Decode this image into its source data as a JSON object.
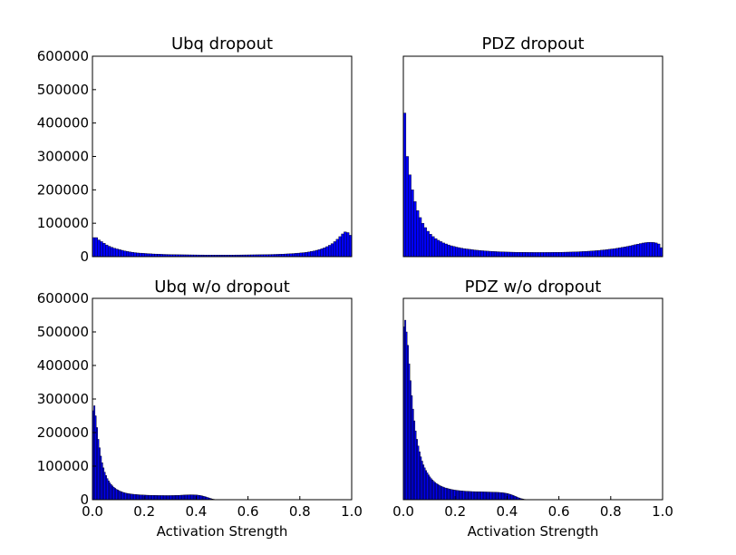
{
  "chart_data": [
    {
      "type": "bar",
      "title": "Ubq dropout",
      "xlabel": "",
      "ylabel": "",
      "xlim": [
        0,
        1
      ],
      "ylim": [
        0,
        600000
      ],
      "xticks": [],
      "yticks": [
        "0",
        "100000",
        "200000",
        "300000",
        "400000",
        "500000",
        "600000"
      ],
      "bar_color": "#0000ff",
      "edge_color": "#000000",
      "bin_width": 0.01,
      "x": [
        0.005,
        0.015,
        0.025,
        0.035,
        0.045,
        0.055,
        0.065,
        0.075,
        0.085,
        0.095,
        0.105,
        0.115,
        0.125,
        0.135,
        0.145,
        0.155,
        0.165,
        0.175,
        0.185,
        0.195,
        0.205,
        0.215,
        0.225,
        0.235,
        0.245,
        0.255,
        0.265,
        0.275,
        0.285,
        0.295,
        0.305,
        0.315,
        0.325,
        0.335,
        0.345,
        0.355,
        0.365,
        0.375,
        0.385,
        0.395,
        0.405,
        0.415,
        0.425,
        0.435,
        0.445,
        0.455,
        0.465,
        0.475,
        0.485,
        0.495,
        0.505,
        0.515,
        0.525,
        0.535,
        0.545,
        0.555,
        0.565,
        0.575,
        0.585,
        0.595,
        0.605,
        0.615,
        0.625,
        0.635,
        0.645,
        0.655,
        0.665,
        0.675,
        0.685,
        0.695,
        0.705,
        0.715,
        0.725,
        0.735,
        0.745,
        0.755,
        0.765,
        0.775,
        0.785,
        0.795,
        0.805,
        0.815,
        0.825,
        0.835,
        0.845,
        0.855,
        0.865,
        0.875,
        0.885,
        0.895,
        0.905,
        0.915,
        0.925,
        0.935,
        0.945,
        0.955,
        0.965,
        0.975,
        0.985,
        0.995
      ],
      "values": [
        57000,
        57000,
        50000,
        45000,
        40000,
        35000,
        31000,
        28000,
        25000,
        23000,
        21000,
        19000,
        17000,
        15500,
        14000,
        13000,
        12000,
        11000,
        10500,
        10000,
        9500,
        9000,
        8500,
        8000,
        7700,
        7400,
        7100,
        6800,
        6600,
        6400,
        6200,
        6000,
        5900,
        5800,
        5700,
        5600,
        5500,
        5400,
        5300,
        5200,
        5100,
        5000,
        5000,
        4900,
        4900,
        4800,
        4800,
        4800,
        4800,
        4800,
        4800,
        4800,
        4800,
        4900,
        4900,
        5000,
        5000,
        5100,
        5200,
        5300,
        5400,
        5500,
        5600,
        5700,
        5800,
        5900,
        6000,
        6200,
        6400,
        6600,
        6800,
        7000,
        7300,
        7600,
        8000,
        8400,
        8800,
        9300,
        9900,
        10500,
        11200,
        12000,
        13000,
        14000,
        15500,
        17000,
        19000,
        21000,
        23500,
        26500,
        30000,
        34000,
        39000,
        45000,
        52000,
        60000,
        68000,
        74000,
        72000,
        64000
      ]
    },
    {
      "type": "bar",
      "title": "PDZ dropout",
      "xlabel": "",
      "ylabel": "",
      "xlim": [
        0,
        1
      ],
      "ylim": [
        0,
        600000
      ],
      "xticks": [],
      "yticks": [],
      "bar_color": "#0000ff",
      "edge_color": "#000000",
      "bin_width": 0.01,
      "x": [
        0.005,
        0.015,
        0.025,
        0.035,
        0.045,
        0.055,
        0.065,
        0.075,
        0.085,
        0.095,
        0.105,
        0.115,
        0.125,
        0.135,
        0.145,
        0.155,
        0.165,
        0.175,
        0.185,
        0.195,
        0.205,
        0.215,
        0.225,
        0.235,
        0.245,
        0.255,
        0.265,
        0.275,
        0.285,
        0.295,
        0.305,
        0.315,
        0.325,
        0.335,
        0.345,
        0.355,
        0.365,
        0.375,
        0.385,
        0.395,
        0.405,
        0.415,
        0.425,
        0.435,
        0.445,
        0.455,
        0.465,
        0.475,
        0.485,
        0.495,
        0.505,
        0.515,
        0.525,
        0.535,
        0.545,
        0.555,
        0.565,
        0.575,
        0.585,
        0.595,
        0.605,
        0.615,
        0.625,
        0.635,
        0.645,
        0.655,
        0.665,
        0.675,
        0.685,
        0.695,
        0.705,
        0.715,
        0.725,
        0.735,
        0.745,
        0.755,
        0.765,
        0.775,
        0.785,
        0.795,
        0.805,
        0.815,
        0.825,
        0.835,
        0.845,
        0.855,
        0.865,
        0.875,
        0.885,
        0.895,
        0.905,
        0.915,
        0.925,
        0.935,
        0.945,
        0.955,
        0.965,
        0.975,
        0.985,
        0.995
      ],
      "values": [
        430000,
        300000,
        245000,
        200000,
        165000,
        138000,
        117000,
        100000,
        87000,
        76000,
        67000,
        60000,
        54000,
        49000,
        45000,
        41000,
        38000,
        35000,
        32500,
        30500,
        28500,
        27000,
        25500,
        24000,
        23000,
        22000,
        21000,
        20000,
        19200,
        18500,
        17800,
        17200,
        16600,
        16100,
        15600,
        15200,
        14800,
        14500,
        14200,
        13900,
        13700,
        13500,
        13300,
        13100,
        13000,
        12900,
        12800,
        12700,
        12600,
        12600,
        12500,
        12500,
        12500,
        12500,
        12500,
        12600,
        12600,
        12700,
        12800,
        12900,
        13000,
        13200,
        13400,
        13600,
        13800,
        14000,
        14300,
        14600,
        15000,
        15400,
        15800,
        16300,
        16800,
        17400,
        18000,
        18700,
        19400,
        20200,
        21000,
        22000,
        23000,
        24000,
        25200,
        26500,
        27800,
        29200,
        30700,
        32300,
        34000,
        35800,
        37500,
        39200,
        40800,
        42000,
        42800,
        43000,
        42500,
        41000,
        38000,
        27000
      ]
    },
    {
      "type": "bar",
      "title": "Ubq w/o dropout",
      "xlabel": "Activation Strength",
      "ylabel": "",
      "xlim": [
        0,
        1
      ],
      "ylim": [
        0,
        600000
      ],
      "xticks": [
        "0.0",
        "0.2",
        "0.4",
        "0.6",
        "0.8",
        "1.0"
      ],
      "yticks": [
        "0",
        "100000",
        "200000",
        "300000",
        "400000",
        "500000",
        "600000"
      ],
      "bar_color": "#0000ff",
      "edge_color": "#000000",
      "bin_width": 0.005,
      "x": [
        0.0025,
        0.0075,
        0.0125,
        0.0175,
        0.0225,
        0.0275,
        0.0325,
        0.0375,
        0.0425,
        0.0475,
        0.0525,
        0.0575,
        0.0625,
        0.0675,
        0.0725,
        0.0775,
        0.0825,
        0.0875,
        0.0925,
        0.0975,
        0.1025,
        0.1075,
        0.1125,
        0.1175,
        0.1225,
        0.1275,
        0.1325,
        0.1375,
        0.1425,
        0.1475,
        0.1525,
        0.1575,
        0.1625,
        0.1675,
        0.1725,
        0.1775,
        0.1825,
        0.1875,
        0.1925,
        0.1975,
        0.2025,
        0.2075,
        0.2125,
        0.2175,
        0.2225,
        0.2275,
        0.2325,
        0.2375,
        0.2425,
        0.2475,
        0.2525,
        0.2575,
        0.2625,
        0.2675,
        0.2725,
        0.2775,
        0.2825,
        0.2875,
        0.2925,
        0.2975,
        0.3025,
        0.3075,
        0.3125,
        0.3175,
        0.3225,
        0.3275,
        0.3325,
        0.3375,
        0.3425,
        0.3475,
        0.3525,
        0.3575,
        0.3625,
        0.3675,
        0.3725,
        0.3775,
        0.3825,
        0.3875,
        0.3925,
        0.3975,
        0.4025,
        0.4075,
        0.4125,
        0.4175,
        0.4225,
        0.4275,
        0.4325,
        0.4375,
        0.4425,
        0.4475,
        0.4525,
        0.4575,
        0.4625,
        0.4675,
        0.4725,
        0.4775,
        0.4825,
        0.4875,
        0.4925,
        0.4975
      ],
      "values": [
        265000,
        280000,
        250000,
        215000,
        180000,
        155000,
        130000,
        110000,
        95000,
        82000,
        72000,
        63000,
        56000,
        50000,
        45000,
        41000,
        37000,
        34000,
        31000,
        29000,
        27000,
        25000,
        23500,
        22000,
        21000,
        20000,
        19000,
        18300,
        17700,
        17100,
        16600,
        16200,
        15800,
        15400,
        15100,
        14800,
        14500,
        14300,
        14100,
        13900,
        13700,
        13500,
        13300,
        13200,
        13100,
        13000,
        12900,
        12800,
        12700,
        12600,
        12500,
        12500,
        12400,
        12400,
        12400,
        12300,
        12300,
        12300,
        12300,
        12300,
        12400,
        12400,
        12500,
        12600,
        12700,
        12800,
        13000,
        13200,
        13400,
        13600,
        13800,
        14000,
        14200,
        14400,
        14500,
        14600,
        14600,
        14500,
        14400,
        14200,
        13900,
        13500,
        13000,
        12300,
        11500,
        10500,
        9500,
        8300,
        7000,
        5700,
        4400,
        3200,
        2200,
        1400,
        800,
        400,
        200,
        100,
        50,
        20
      ]
    },
    {
      "type": "bar",
      "title": "PDZ w/o dropout",
      "xlabel": "Activation Strength",
      "ylabel": "",
      "xlim": [
        0,
        1
      ],
      "ylim": [
        0,
        600000
      ],
      "xticks": [
        "0.0",
        "0.2",
        "0.4",
        "0.6",
        "0.8",
        "1.0"
      ],
      "yticks": [],
      "bar_color": "#0000ff",
      "edge_color": "#000000",
      "bin_width": 0.005,
      "x": [
        0.0025,
        0.0075,
        0.0125,
        0.0175,
        0.0225,
        0.0275,
        0.0325,
        0.0375,
        0.0425,
        0.0475,
        0.0525,
        0.0575,
        0.0625,
        0.0675,
        0.0725,
        0.0775,
        0.0825,
        0.0875,
        0.0925,
        0.0975,
        0.1025,
        0.1075,
        0.1125,
        0.1175,
        0.1225,
        0.1275,
        0.1325,
        0.1375,
        0.1425,
        0.1475,
        0.1525,
        0.1575,
        0.1625,
        0.1675,
        0.1725,
        0.1775,
        0.1825,
        0.1875,
        0.1925,
        0.1975,
        0.2025,
        0.2075,
        0.2125,
        0.2175,
        0.2225,
        0.2275,
        0.2325,
        0.2375,
        0.2425,
        0.2475,
        0.2525,
        0.2575,
        0.2625,
        0.2675,
        0.2725,
        0.2775,
        0.2825,
        0.2875,
        0.2925,
        0.2975,
        0.3025,
        0.3075,
        0.3125,
        0.3175,
        0.3225,
        0.3275,
        0.3325,
        0.3375,
        0.3425,
        0.3475,
        0.3525,
        0.3575,
        0.3625,
        0.3675,
        0.3725,
        0.3775,
        0.3825,
        0.3875,
        0.3925,
        0.3975,
        0.4025,
        0.4075,
        0.4125,
        0.4175,
        0.4225,
        0.4275,
        0.4325,
        0.4375,
        0.4425,
        0.4475,
        0.4525,
        0.4575,
        0.4625,
        0.4675,
        0.4725,
        0.4775,
        0.4825,
        0.4875,
        0.4925,
        0.4975
      ],
      "values": [
        515000,
        535000,
        500000,
        460000,
        405000,
        355000,
        310000,
        270000,
        235000,
        205000,
        180000,
        160000,
        143000,
        128000,
        115000,
        104000,
        95000,
        87000,
        80000,
        74000,
        68000,
        63000,
        59000,
        55000,
        51500,
        48500,
        46000,
        43500,
        41500,
        39500,
        38000,
        36500,
        35000,
        34000,
        33000,
        32000,
        31000,
        30200,
        29500,
        28800,
        28200,
        27700,
        27200,
        26800,
        26400,
        26000,
        25700,
        25400,
        25100,
        24900,
        24700,
        24500,
        24300,
        24100,
        24000,
        23900,
        23800,
        23700,
        23600,
        23500,
        23400,
        23300,
        23200,
        23100,
        23000,
        22900,
        22800,
        22700,
        22600,
        22500,
        22400,
        22200,
        22000,
        21800,
        21500,
        21200,
        20800,
        20300,
        19700,
        19000,
        18200,
        17200,
        16000,
        14700,
        13200,
        11600,
        9900,
        8200,
        6600,
        5100,
        3800,
        2700,
        1800,
        1100,
        600,
        300,
        150,
        70,
        30,
        10
      ]
    }
  ]
}
